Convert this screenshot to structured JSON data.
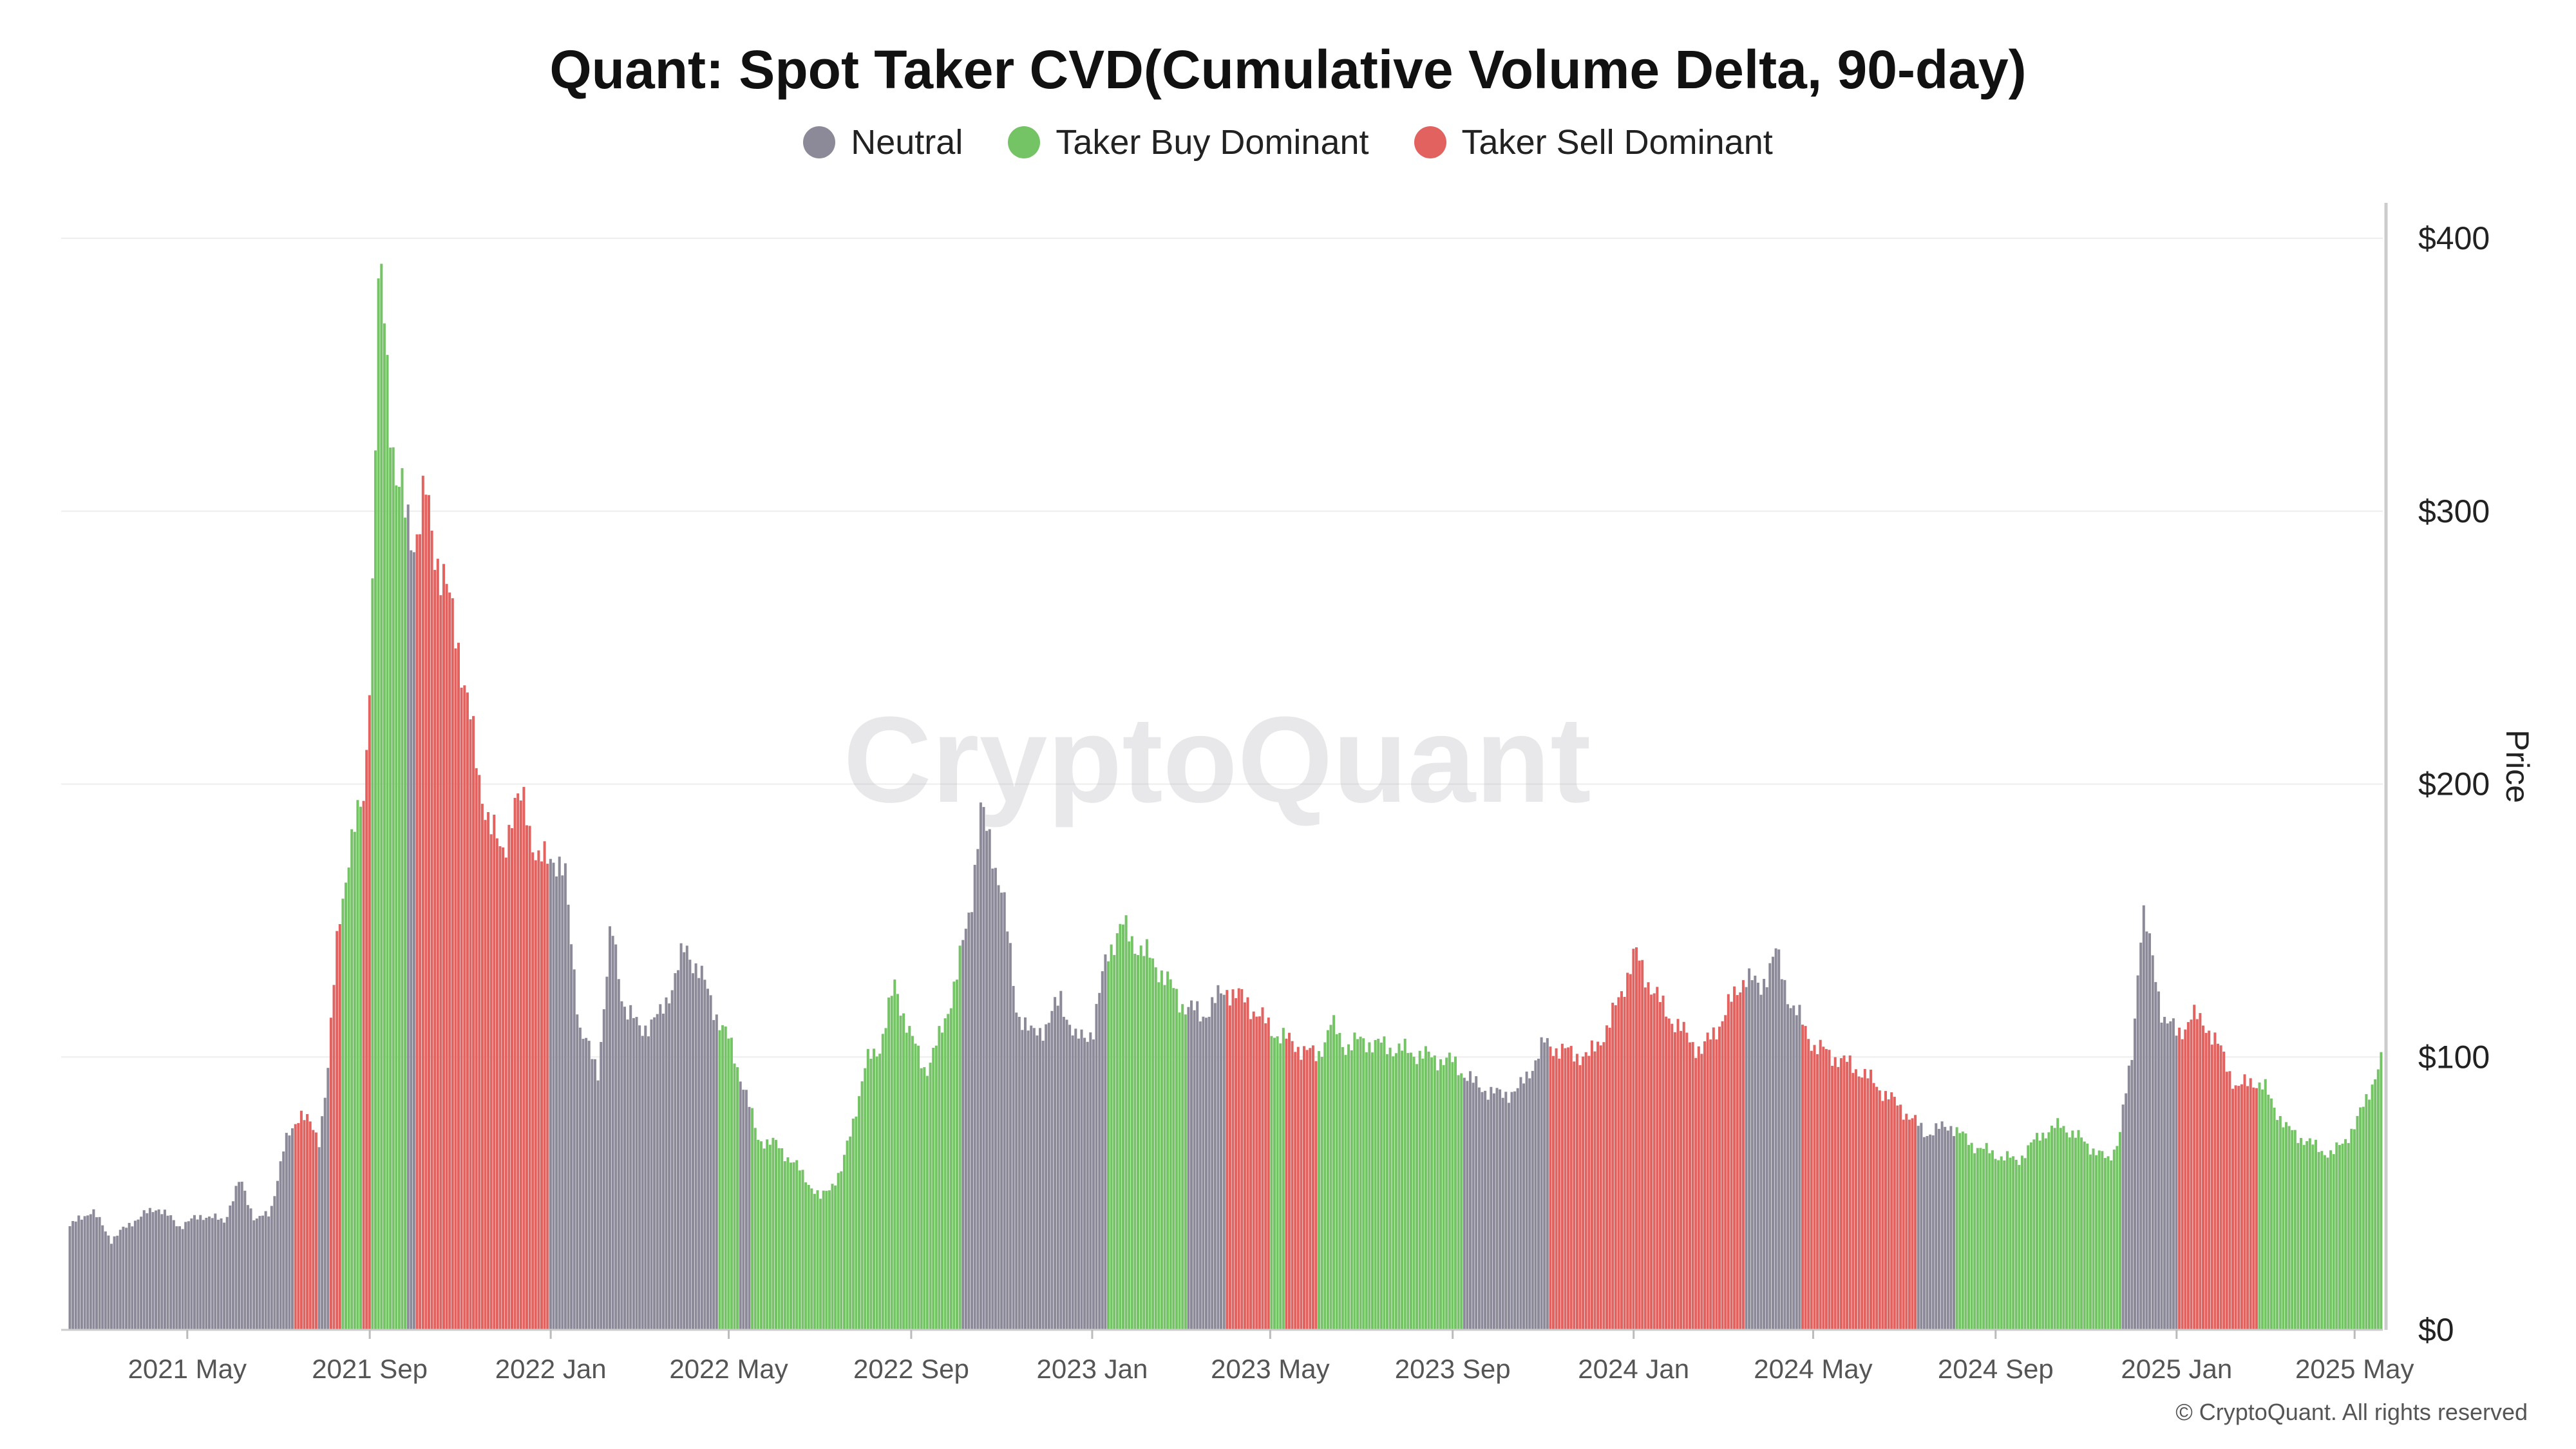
{
  "chart_data": {
    "type": "bar",
    "title": "Quant: Spot Taker CVD(Cumulative Volume Delta, 90-day)",
    "ylabel": "Price",
    "ylim": [
      0,
      400
    ],
    "yticks": [
      0,
      100,
      200,
      300,
      400
    ],
    "ytick_labels": [
      "$0",
      "$100",
      "$200",
      "$300",
      "$400"
    ],
    "xlim": [
      "2021-02-05",
      "2025-05-20"
    ],
    "xticks": [
      "2021-05-01",
      "2021-09-01",
      "2022-01-01",
      "2022-05-01",
      "2022-09-01",
      "2023-01-01",
      "2023-05-01",
      "2023-09-01",
      "2024-01-01",
      "2024-05-01",
      "2024-09-01",
      "2025-01-01",
      "2025-05-01"
    ],
    "xtick_labels": [
      "2021 May",
      "2021 Sep",
      "2022 Jan",
      "2022 May",
      "2022 Sep",
      "2023 Jan",
      "2023 May",
      "2023 Sep",
      "2024 Jan",
      "2024 May",
      "2024 Sep",
      "2025 Jan",
      "2025 May"
    ],
    "grid": true,
    "legend_position": "top-center",
    "series": [
      {
        "name": "Neutral",
        "color": "#8c8a99"
      },
      {
        "name": "Taker Buy Dominant",
        "color": "#74c365"
      },
      {
        "name": "Taker Sell Dominant",
        "color": "#e2625f"
      }
    ],
    "price_points": [
      [
        "2021-02-10",
        38
      ],
      [
        "2021-02-25",
        44
      ],
      [
        "2021-03-10",
        33
      ],
      [
        "2021-03-25",
        40
      ],
      [
        "2021-04-10",
        45
      ],
      [
        "2021-04-25",
        38
      ],
      [
        "2021-05-10",
        42
      ],
      [
        "2021-05-25",
        40
      ],
      [
        "2021-06-05",
        55
      ],
      [
        "2021-06-15",
        40
      ],
      [
        "2021-06-25",
        43
      ],
      [
        "2021-07-05",
        68
      ],
      [
        "2021-07-15",
        80
      ],
      [
        "2021-07-22",
        75
      ],
      [
        "2021-07-28",
        70
      ],
      [
        "2021-08-03",
        95
      ],
      [
        "2021-08-10",
        150
      ],
      [
        "2021-08-16",
        170
      ],
      [
        "2021-08-22",
        185
      ],
      [
        "2021-08-28",
        200
      ],
      [
        "2021-09-02",
        270
      ],
      [
        "2021-09-06",
        375
      ],
      [
        "2021-09-09",
        385
      ],
      [
        "2021-09-13",
        345
      ],
      [
        "2021-09-18",
        310
      ],
      [
        "2021-09-24",
        300
      ],
      [
        "2021-10-01",
        290
      ],
      [
        "2021-10-08",
        305
      ],
      [
        "2021-10-15",
        285
      ],
      [
        "2021-10-22",
        270
      ],
      [
        "2021-10-29",
        255
      ],
      [
        "2021-11-05",
        230
      ],
      [
        "2021-11-12",
        205
      ],
      [
        "2021-11-20",
        185
      ],
      [
        "2021-11-28",
        175
      ],
      [
        "2021-12-06",
        190
      ],
      [
        "2021-12-14",
        195
      ],
      [
        "2021-12-22",
        170
      ],
      [
        "2022-01-01",
        175
      ],
      [
        "2022-01-10",
        165
      ],
      [
        "2022-01-20",
        110
      ],
      [
        "2022-02-01",
        95
      ],
      [
        "2022-02-10",
        148
      ],
      [
        "2022-02-18",
        120
      ],
      [
        "2022-03-01",
        110
      ],
      [
        "2022-03-15",
        115
      ],
      [
        "2022-04-01",
        140
      ],
      [
        "2022-04-10",
        132
      ],
      [
        "2022-04-20",
        118
      ],
      [
        "2022-05-01",
        105
      ],
      [
        "2022-05-10",
        90
      ],
      [
        "2022-05-20",
        70
      ],
      [
        "2022-06-01",
        68
      ],
      [
        "2022-06-15",
        60
      ],
      [
        "2022-07-01",
        48
      ],
      [
        "2022-07-15",
        58
      ],
      [
        "2022-08-01",
        98
      ],
      [
        "2022-08-10",
        104
      ],
      [
        "2022-08-20",
        126
      ],
      [
        "2022-09-01",
        106
      ],
      [
        "2022-09-10",
        95
      ],
      [
        "2022-09-20",
        108
      ],
      [
        "2022-10-01",
        130
      ],
      [
        "2022-10-10",
        155
      ],
      [
        "2022-10-17",
        190
      ],
      [
        "2022-10-25",
        175
      ],
      [
        "2022-11-01",
        160
      ],
      [
        "2022-11-10",
        118
      ],
      [
        "2022-11-20",
        108
      ],
      [
        "2022-12-01",
        112
      ],
      [
        "2022-12-10",
        122
      ],
      [
        "2022-12-20",
        106
      ],
      [
        "2023-01-01",
        110
      ],
      [
        "2023-01-10",
        138
      ],
      [
        "2023-01-20",
        148
      ],
      [
        "2023-02-01",
        140
      ],
      [
        "2023-02-15",
        132
      ],
      [
        "2023-03-01",
        120
      ],
      [
        "2023-03-15",
        115
      ],
      [
        "2023-04-01",
        125
      ],
      [
        "2023-04-15",
        120
      ],
      [
        "2023-05-01",
        110
      ],
      [
        "2023-05-15",
        105
      ],
      [
        "2023-06-01",
        100
      ],
      [
        "2023-06-10",
        112
      ],
      [
        "2023-06-20",
        104
      ],
      [
        "2023-07-01",
        106
      ],
      [
        "2023-08-01",
        102
      ],
      [
        "2023-09-01",
        98
      ],
      [
        "2023-09-15",
        90
      ],
      [
        "2023-10-01",
        86
      ],
      [
        "2023-10-15",
        88
      ],
      [
        "2023-11-01",
        105
      ],
      [
        "2023-11-15",
        102
      ],
      [
        "2023-12-01",
        100
      ],
      [
        "2023-12-15",
        112
      ],
      [
        "2024-01-01",
        138
      ],
      [
        "2024-01-10",
        128
      ],
      [
        "2024-01-20",
        118
      ],
      [
        "2024-02-01",
        110
      ],
      [
        "2024-02-15",
        102
      ],
      [
        "2024-03-01",
        115
      ],
      [
        "2024-03-15",
        130
      ],
      [
        "2024-03-25",
        125
      ],
      [
        "2024-04-05",
        138
      ],
      [
        "2024-04-15",
        120
      ],
      [
        "2024-05-01",
        104
      ],
      [
        "2024-05-15",
        100
      ],
      [
        "2024-06-01",
        95
      ],
      [
        "2024-06-15",
        88
      ],
      [
        "2024-07-01",
        80
      ],
      [
        "2024-07-15",
        72
      ],
      [
        "2024-08-01",
        75
      ],
      [
        "2024-08-15",
        68
      ],
      [
        "2024-09-01",
        64
      ],
      [
        "2024-09-15",
        62
      ],
      [
        "2024-10-01",
        72
      ],
      [
        "2024-10-15",
        75
      ],
      [
        "2024-11-01",
        68
      ],
      [
        "2024-11-15",
        62
      ],
      [
        "2024-11-22",
        70
      ],
      [
        "2024-12-01",
        100
      ],
      [
        "2024-12-08",
        155
      ],
      [
        "2024-12-15",
        135
      ],
      [
        "2024-12-22",
        115
      ],
      [
        "2025-01-01",
        108
      ],
      [
        "2025-01-10",
        115
      ],
      [
        "2025-01-20",
        112
      ],
      [
        "2025-02-01",
        100
      ],
      [
        "2025-02-10",
        88
      ],
      [
        "2025-02-20",
        92
      ],
      [
        "2025-03-01",
        88
      ],
      [
        "2025-03-15",
        74
      ],
      [
        "2025-04-01",
        68
      ],
      [
        "2025-04-15",
        64
      ],
      [
        "2025-05-01",
        75
      ],
      [
        "2025-05-10",
        88
      ],
      [
        "2025-05-18",
        98
      ]
    ],
    "regimes": [
      {
        "start": "2021-02-05",
        "end": "2021-07-12",
        "state": "Neutral"
      },
      {
        "start": "2021-07-12",
        "end": "2021-07-28",
        "state": "Taker Sell Dominant"
      },
      {
        "start": "2021-07-28",
        "end": "2021-08-05",
        "state": "Neutral"
      },
      {
        "start": "2021-08-05",
        "end": "2021-08-12",
        "state": "Taker Sell Dominant"
      },
      {
        "start": "2021-08-12",
        "end": "2021-08-27",
        "state": "Taker Buy Dominant"
      },
      {
        "start": "2021-08-27",
        "end": "2021-09-01",
        "state": "Taker Sell Dominant"
      },
      {
        "start": "2021-09-01",
        "end": "2021-09-26",
        "state": "Taker Buy Dominant"
      },
      {
        "start": "2021-09-26",
        "end": "2021-10-02",
        "state": "Neutral"
      },
      {
        "start": "2021-10-02",
        "end": "2021-12-31",
        "state": "Taker Sell Dominant"
      },
      {
        "start": "2021-12-31",
        "end": "2022-04-23",
        "state": "Neutral"
      },
      {
        "start": "2022-04-23",
        "end": "2022-05-08",
        "state": "Taker Buy Dominant"
      },
      {
        "start": "2022-05-08",
        "end": "2022-05-15",
        "state": "Neutral"
      },
      {
        "start": "2022-05-15",
        "end": "2022-10-05",
        "state": "Taker Buy Dominant"
      },
      {
        "start": "2022-10-05",
        "end": "2023-01-10",
        "state": "Neutral"
      },
      {
        "start": "2023-01-10",
        "end": "2023-03-05",
        "state": "Taker Buy Dominant"
      },
      {
        "start": "2023-03-05",
        "end": "2023-04-01",
        "state": "Neutral"
      },
      {
        "start": "2023-04-01",
        "end": "2023-05-01",
        "state": "Taker Sell Dominant"
      },
      {
        "start": "2023-05-01",
        "end": "2023-05-10",
        "state": "Taker Buy Dominant"
      },
      {
        "start": "2023-05-10",
        "end": "2023-06-01",
        "state": "Taker Sell Dominant"
      },
      {
        "start": "2023-06-01",
        "end": "2023-09-07",
        "state": "Taker Buy Dominant"
      },
      {
        "start": "2023-09-07",
        "end": "2023-11-05",
        "state": "Neutral"
      },
      {
        "start": "2023-11-05",
        "end": "2024-03-15",
        "state": "Taker Sell Dominant"
      },
      {
        "start": "2024-03-15",
        "end": "2024-04-22",
        "state": "Neutral"
      },
      {
        "start": "2024-04-22",
        "end": "2024-07-10",
        "state": "Taker Sell Dominant"
      },
      {
        "start": "2024-07-10",
        "end": "2024-08-05",
        "state": "Neutral"
      },
      {
        "start": "2024-08-05",
        "end": "2024-11-25",
        "state": "Taker Buy Dominant"
      },
      {
        "start": "2024-11-25",
        "end": "2025-01-01",
        "state": "Neutral"
      },
      {
        "start": "2025-01-01",
        "end": "2025-02-25",
        "state": "Taker Sell Dominant"
      },
      {
        "start": "2025-02-25",
        "end": "2025-05-20",
        "state": "Taker Buy Dominant"
      }
    ],
    "watermark": "CryptoQuant",
    "copyright": "© CryptoQuant. All rights reserved"
  }
}
